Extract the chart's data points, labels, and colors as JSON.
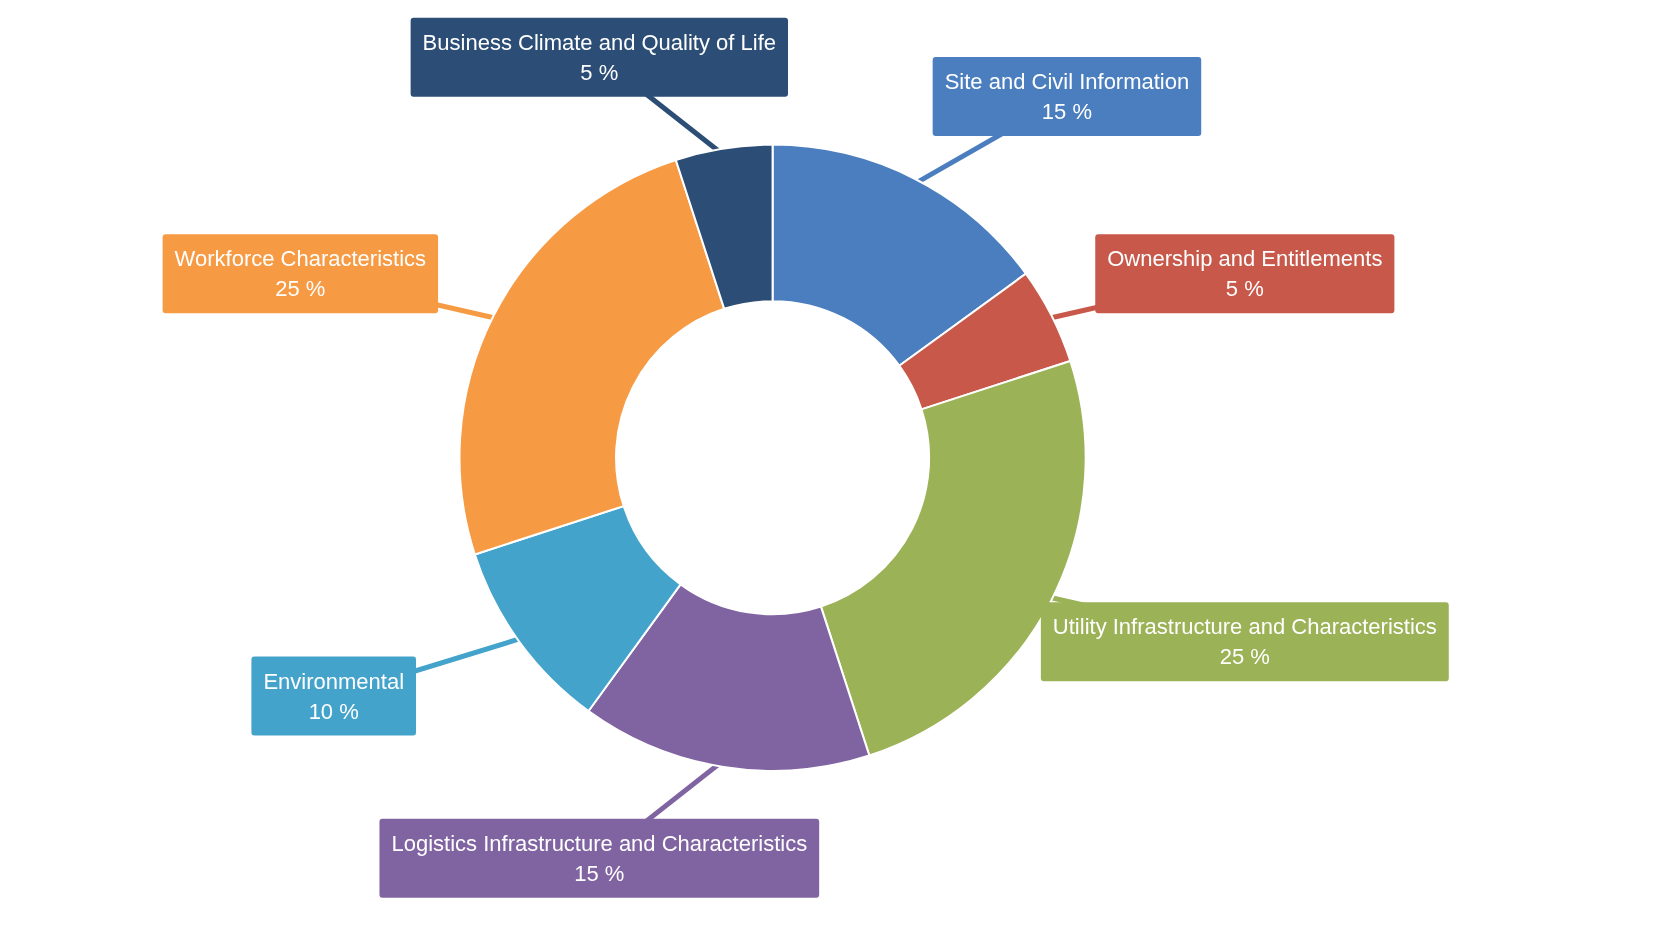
{
  "chart_data": {
    "type": "donut",
    "categories": [
      "Site and Civil Information",
      "Ownership and Entitlements",
      "Utility Infrastructure and Characteristics",
      "Logistics Infrastructure and Characteristics",
      "Environmental",
      "Workforce Characteristics",
      "Business Climate and Quality of Life"
    ],
    "values": [
      15,
      5,
      25,
      15,
      10,
      25,
      5
    ],
    "value_labels": [
      "15 %",
      "5 %",
      "25 %",
      "15 %",
      "10 %",
      "25 %",
      "5 %"
    ],
    "colors": [
      "#4a7ebf",
      "#c8594a",
      "#9bb257",
      "#8064a2",
      "#44a3cb",
      "#f79a44",
      "#2c4d75"
    ]
  }
}
